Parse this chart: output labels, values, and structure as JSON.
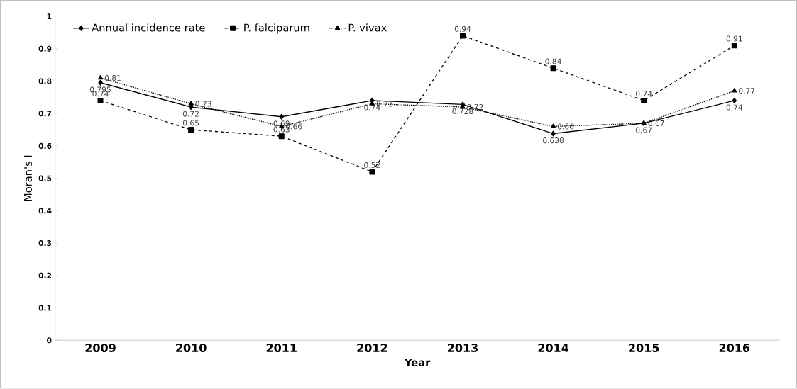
{
  "chart_data": {
    "type": "line",
    "xlabel": "Year",
    "ylabel": "Moran's I",
    "categories": [
      "2009",
      "2010",
      "2011",
      "2012",
      "2013",
      "2014",
      "2015",
      "2016"
    ],
    "series": [
      {
        "name": "Annual incidence rate",
        "color": "#000000",
        "marker": "diamond",
        "line_style": "solid",
        "values": [
          0.795,
          0.72,
          0.69,
          0.74,
          0.728,
          0.638,
          0.67,
          0.74
        ]
      },
      {
        "name": "P. falciparum",
        "color": "#000000",
        "marker": "square",
        "line_style": "dashed",
        "values": [
          0.74,
          0.65,
          0.63,
          0.52,
          0.94,
          0.84,
          0.74,
          0.91
        ]
      },
      {
        "name": "P. vivax",
        "color": "#000000",
        "marker": "triangle",
        "line_style": "dotted",
        "values": [
          0.81,
          0.73,
          0.66,
          0.73,
          0.72,
          0.66,
          0.67,
          0.77
        ]
      }
    ],
    "ylim": [
      0,
      1
    ],
    "yticks": [
      0,
      0.1,
      0.2,
      0.3,
      0.4,
      0.5,
      0.6,
      0.7,
      0.8,
      0.9,
      1
    ],
    "grid": false,
    "legend": "top left",
    "data_labels": true
  }
}
